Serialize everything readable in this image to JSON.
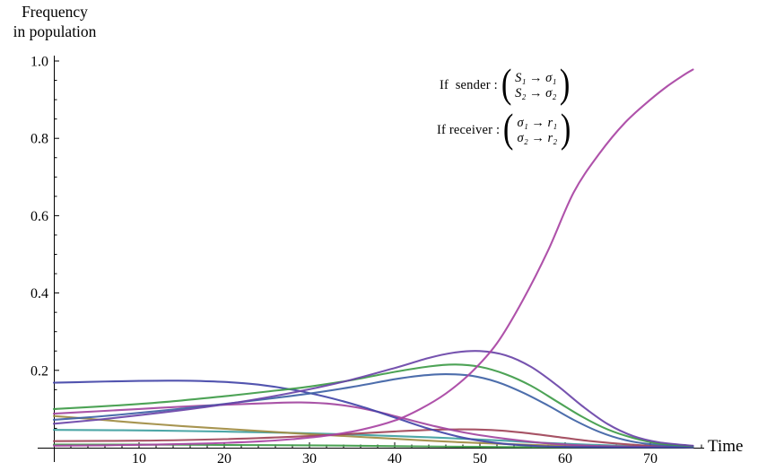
{
  "chart_data": {
    "type": "line",
    "title": "",
    "ylabel_lines": {
      "line1": "Frequency",
      "line2": "in population"
    },
    "xlabel": "Time",
    "xlim": [
      0,
      76
    ],
    "ylim": [
      0,
      1.0
    ],
    "xticks": [
      10,
      20,
      30,
      40,
      50,
      60,
      70
    ],
    "xtick_minor_step": 2,
    "yticks": [
      "0.2",
      "0.4",
      "0.6",
      "0.8",
      "1.0"
    ],
    "ytick_minor_step": 0.05,
    "grid": false,
    "legend": "none",
    "axis_color": "#000000",
    "background": "#ffffff",
    "series": [
      {
        "name": "teal-low-declining",
        "color": "#3FA0A0",
        "points": [
          [
            0,
            0.046
          ],
          [
            8,
            0.045
          ],
          [
            16,
            0.043
          ],
          [
            24,
            0.04
          ],
          [
            32,
            0.036
          ],
          [
            40,
            0.03
          ],
          [
            46,
            0.025
          ],
          [
            52,
            0.019
          ],
          [
            58,
            0.012
          ],
          [
            64,
            0.007
          ],
          [
            70,
            0.003
          ],
          [
            75,
            0.002
          ]
        ]
      },
      {
        "name": "olive-declining",
        "color": "#9F8C42",
        "points": [
          [
            0,
            0.082
          ],
          [
            5,
            0.073
          ],
          [
            10,
            0.064
          ],
          [
            15,
            0.056
          ],
          [
            20,
            0.049
          ],
          [
            25,
            0.042
          ],
          [
            30,
            0.035
          ],
          [
            35,
            0.029
          ],
          [
            40,
            0.023
          ],
          [
            45,
            0.017
          ],
          [
            50,
            0.012
          ],
          [
            55,
            0.008
          ],
          [
            60,
            0.005
          ],
          [
            66,
            0.003
          ],
          [
            75,
            0.001
          ]
        ]
      },
      {
        "name": "maroon-low-hump",
        "color": "#A04458",
        "points": [
          [
            0,
            0.017
          ],
          [
            10,
            0.018
          ],
          [
            20,
            0.022
          ],
          [
            30,
            0.03
          ],
          [
            40,
            0.042
          ],
          [
            46,
            0.047
          ],
          [
            51,
            0.046
          ],
          [
            55,
            0.039
          ],
          [
            59,
            0.028
          ],
          [
            63,
            0.017
          ],
          [
            67,
            0.009
          ],
          [
            71,
            0.004
          ],
          [
            75,
            0.002
          ]
        ]
      },
      {
        "name": "green-low-flat",
        "color": "#3E9B48",
        "points": [
          [
            0,
            0.008
          ],
          [
            10,
            0.008
          ],
          [
            20,
            0.007
          ],
          [
            30,
            0.006
          ],
          [
            40,
            0.004
          ],
          [
            50,
            0.002
          ],
          [
            60,
            0.001
          ],
          [
            75,
            0.001
          ]
        ]
      },
      {
        "name": "magenta-hump-declining",
        "color": "#A245A0",
        "points": [
          [
            0,
            0.088
          ],
          [
            5,
            0.094
          ],
          [
            10,
            0.1
          ],
          [
            15,
            0.106
          ],
          [
            20,
            0.111
          ],
          [
            25,
            0.115
          ],
          [
            29,
            0.117
          ],
          [
            33,
            0.112
          ],
          [
            37,
            0.098
          ],
          [
            41,
            0.076
          ],
          [
            45,
            0.054
          ],
          [
            49,
            0.036
          ],
          [
            53,
            0.023
          ],
          [
            57,
            0.013
          ],
          [
            61,
            0.007
          ],
          [
            66,
            0.003
          ],
          [
            75,
            0.001
          ]
        ]
      },
      {
        "name": "royal-blue-flat-declining",
        "color": "#4345A8",
        "points": [
          [
            0,
            0.168
          ],
          [
            4,
            0.17
          ],
          [
            8,
            0.172
          ],
          [
            12,
            0.173
          ],
          [
            16,
            0.173
          ],
          [
            20,
            0.17
          ],
          [
            24,
            0.163
          ],
          [
            28,
            0.15
          ],
          [
            32,
            0.131
          ],
          [
            36,
            0.107
          ],
          [
            40,
            0.078
          ],
          [
            44,
            0.049
          ],
          [
            48,
            0.026
          ],
          [
            52,
            0.012
          ],
          [
            56,
            0.005
          ],
          [
            60,
            0.002
          ],
          [
            66,
            0.001
          ],
          [
            75,
            0.001
          ]
        ]
      },
      {
        "name": "steel-blue-hump",
        "color": "#3E62A5",
        "points": [
          [
            0,
            0.072
          ],
          [
            5,
            0.08
          ],
          [
            10,
            0.09
          ],
          [
            15,
            0.101
          ],
          [
            20,
            0.113
          ],
          [
            25,
            0.126
          ],
          [
            30,
            0.14
          ],
          [
            35,
            0.157
          ],
          [
            40,
            0.177
          ],
          [
            43,
            0.186
          ],
          [
            46,
            0.19
          ],
          [
            49,
            0.186
          ],
          [
            52,
            0.17
          ],
          [
            55,
            0.143
          ],
          [
            58,
            0.109
          ],
          [
            61,
            0.072
          ],
          [
            64,
            0.041
          ],
          [
            67,
            0.02
          ],
          [
            70,
            0.009
          ],
          [
            75,
            0.003
          ]
        ]
      },
      {
        "name": "green-hump",
        "color": "#3E9B48",
        "points": [
          [
            0,
            0.1
          ],
          [
            5,
            0.106
          ],
          [
            10,
            0.113
          ],
          [
            15,
            0.122
          ],
          [
            20,
            0.133
          ],
          [
            25,
            0.145
          ],
          [
            30,
            0.158
          ],
          [
            35,
            0.175
          ],
          [
            40,
            0.196
          ],
          [
            44,
            0.21
          ],
          [
            47,
            0.215
          ],
          [
            50,
            0.209
          ],
          [
            53,
            0.19
          ],
          [
            56,
            0.16
          ],
          [
            59,
            0.12
          ],
          [
            62,
            0.08
          ],
          [
            65,
            0.047
          ],
          [
            68,
            0.025
          ],
          [
            71,
            0.011
          ],
          [
            75,
            0.004
          ]
        ]
      },
      {
        "name": "purple-hump",
        "color": "#6A44A8",
        "points": [
          [
            0,
            0.062
          ],
          [
            5,
            0.072
          ],
          [
            10,
            0.084
          ],
          [
            15,
            0.097
          ],
          [
            20,
            0.112
          ],
          [
            25,
            0.13
          ],
          [
            30,
            0.151
          ],
          [
            35,
            0.176
          ],
          [
            40,
            0.206
          ],
          [
            44,
            0.232
          ],
          [
            47,
            0.246
          ],
          [
            50,
            0.25
          ],
          [
            53,
            0.239
          ],
          [
            56,
            0.209
          ],
          [
            59,
            0.162
          ],
          [
            62,
            0.108
          ],
          [
            65,
            0.061
          ],
          [
            68,
            0.03
          ],
          [
            71,
            0.014
          ],
          [
            75,
            0.005
          ]
        ]
      },
      {
        "name": "magenta-sigmoid-signaling-system",
        "color": "#A843A3",
        "points": [
          [
            0,
            0.005
          ],
          [
            6,
            0.006
          ],
          [
            12,
            0.008
          ],
          [
            18,
            0.011
          ],
          [
            24,
            0.016
          ],
          [
            28,
            0.022
          ],
          [
            32,
            0.031
          ],
          [
            36,
            0.046
          ],
          [
            40,
            0.07
          ],
          [
            43,
            0.1
          ],
          [
            46,
            0.14
          ],
          [
            49,
            0.195
          ],
          [
            52,
            0.27
          ],
          [
            55,
            0.38
          ],
          [
            58,
            0.51
          ],
          [
            61,
            0.66
          ],
          [
            64,
            0.76
          ],
          [
            67,
            0.84
          ],
          [
            70,
            0.9
          ],
          [
            72,
            0.935
          ],
          [
            74,
            0.965
          ],
          [
            75,
            0.978
          ]
        ]
      }
    ],
    "annotations": {
      "sender": {
        "label": "If  sender :",
        "row1": "S₁ → σ₁",
        "row2": "S₂ → σ₂"
      },
      "receiver": {
        "label": "If receiver :",
        "row1": "σ₁ → r₁",
        "row2": "σ₂ → r₂"
      }
    }
  }
}
